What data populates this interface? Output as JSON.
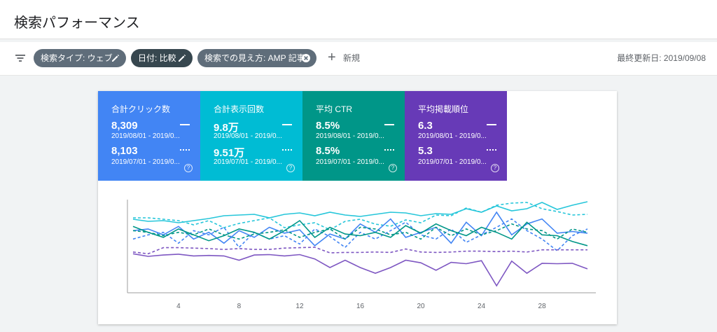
{
  "page": {
    "title": "検索パフォーマンス"
  },
  "filters": {
    "icon": "filter-list-icon",
    "chips": [
      {
        "label": "検索タイプ: ウェブ",
        "icon": "edit-pencil-icon",
        "color": "#5f6d7a"
      },
      {
        "label": "日付: 比較",
        "icon": "edit-pencil-icon",
        "color": "#37474f"
      },
      {
        "label": "検索での見え方: AMP 記事",
        "icon": "close-circle-icon",
        "color": "#5f6d7a"
      }
    ],
    "add_label": "新規",
    "updated_label": "最終更新日: 2019/09/08"
  },
  "metrics": [
    {
      "title": "合計クリック数",
      "color": "#4285f4",
      "value_current": "8,309",
      "range_current": "2019/08/01 - 2019/0...",
      "value_previous": "8,103",
      "range_previous": "2019/07/01 - 2019/0..."
    },
    {
      "title": "合計表示回数",
      "color": "#00bcd4",
      "value_current": "9.8万",
      "range_current": "2019/08/01 - 2019/0...",
      "value_previous": "9.51万",
      "range_previous": "2019/07/01 - 2019/0..."
    },
    {
      "title": "平均 CTR",
      "color": "#009688",
      "value_current": "8.5%",
      "range_current": "2019/08/01 - 2019/0...",
      "value_previous": "8.5%",
      "range_previous": "2019/07/01 - 2019/0..."
    },
    {
      "title": "平均掲載順位",
      "color": "#673ab7",
      "value_current": "6.3",
      "range_current": "2019/08/01 - 2019/0...",
      "value_previous": "5.3",
      "range_previous": "2019/07/01 - 2019/0..."
    }
  ],
  "chart_data": {
    "type": "line",
    "x": [
      1,
      2,
      3,
      4,
      5,
      6,
      7,
      8,
      9,
      10,
      11,
      12,
      13,
      14,
      15,
      16,
      17,
      18,
      19,
      20,
      21,
      22,
      23,
      24,
      25,
      26,
      27,
      28,
      29,
      30,
      31
    ],
    "x_ticks": [
      4,
      8,
      12,
      16,
      20,
      24,
      28
    ],
    "grid": false,
    "series": [
      {
        "color": "#4285f4",
        "dashed": false,
        "values": [
          320,
          318,
          325,
          315,
          330,
          322,
          335,
          320,
          328,
          316,
          323,
          319,
          338,
          324,
          330,
          312,
          322,
          306,
          328,
          322,
          316,
          335,
          310,
          326,
          298,
          325,
          312,
          306,
          323,
          321,
          323
        ]
      },
      {
        "color": "#4285f4",
        "dashed": true,
        "values": [
          330,
          325,
          322,
          335,
          320,
          325,
          316,
          340,
          322,
          330,
          326,
          336,
          318,
          327,
          340,
          322,
          330,
          320,
          310,
          325,
          330,
          318,
          334,
          325,
          316,
          306,
          320,
          330,
          344,
          326,
          318
        ]
      },
      {
        "color": "#26c6da",
        "dashed": false,
        "values": [
          310,
          313,
          312,
          315,
          312,
          309,
          305,
          304,
          303,
          308,
          303,
          301,
          305,
          300,
          304,
          306,
          303,
          300,
          301,
          305,
          302,
          303,
          295,
          300,
          291,
          298,
          295,
          286,
          296,
          290,
          285
        ]
      },
      {
        "color": "#26c6da",
        "dashed": true,
        "values": [
          308,
          308,
          310,
          312,
          318,
          312,
          322,
          316,
          312,
          308,
          322,
          318,
          315,
          325,
          313,
          310,
          317,
          320,
          311,
          315,
          304,
          305,
          294,
          300,
          290,
          287,
          286,
          295,
          299,
          304,
          303
        ]
      },
      {
        "color": "#009688",
        "dashed": false,
        "values": [
          315,
          322,
          328,
          318,
          325,
          332,
          326,
          318,
          322,
          330,
          320,
          308,
          328,
          316,
          324,
          326,
          322,
          328,
          314,
          323,
          312,
          320,
          326,
          316,
          322,
          330,
          310,
          325,
          326,
          333,
          338
        ]
      },
      {
        "color": "#009688",
        "dashed": true,
        "values": [
          320,
          322,
          326,
          322,
          325,
          318,
          325,
          330,
          324,
          322,
          319,
          328,
          322,
          318,
          330,
          316,
          318,
          325,
          322,
          330,
          316,
          326,
          318,
          325,
          320,
          312,
          318,
          320,
          330,
          318,
          322
        ]
      },
      {
        "color": "#7e57c2",
        "dashed": false,
        "values": [
          2.9,
          3.5,
          3.2,
          3.0,
          3.4,
          3.3,
          3.4,
          4.4,
          3.2,
          3.1,
          3.4,
          3.1,
          4.1,
          6.1,
          4.4,
          6.1,
          7.4,
          6.1,
          4.4,
          5.0,
          6.7,
          4.9,
          5.2,
          4.5,
          10.3,
          4.6,
          7.4,
          5.1,
          5.2,
          5.1,
          6.4
        ]
      },
      {
        "color": "#7e57c2",
        "dashed": true,
        "values": [
          2.5,
          2.9,
          1.5,
          1.5,
          1.6,
          1.7,
          1.9,
          1.7,
          1.9,
          1.9,
          1.6,
          1.5,
          1.4,
          2.7,
          2.6,
          2.6,
          2.5,
          2.6,
          1.8,
          2.5,
          2.6,
          2.5,
          2.3,
          2.3,
          2.4,
          2.3,
          2.5,
          2.0,
          2.0,
          2.0,
          2.0
        ]
      }
    ]
  }
}
